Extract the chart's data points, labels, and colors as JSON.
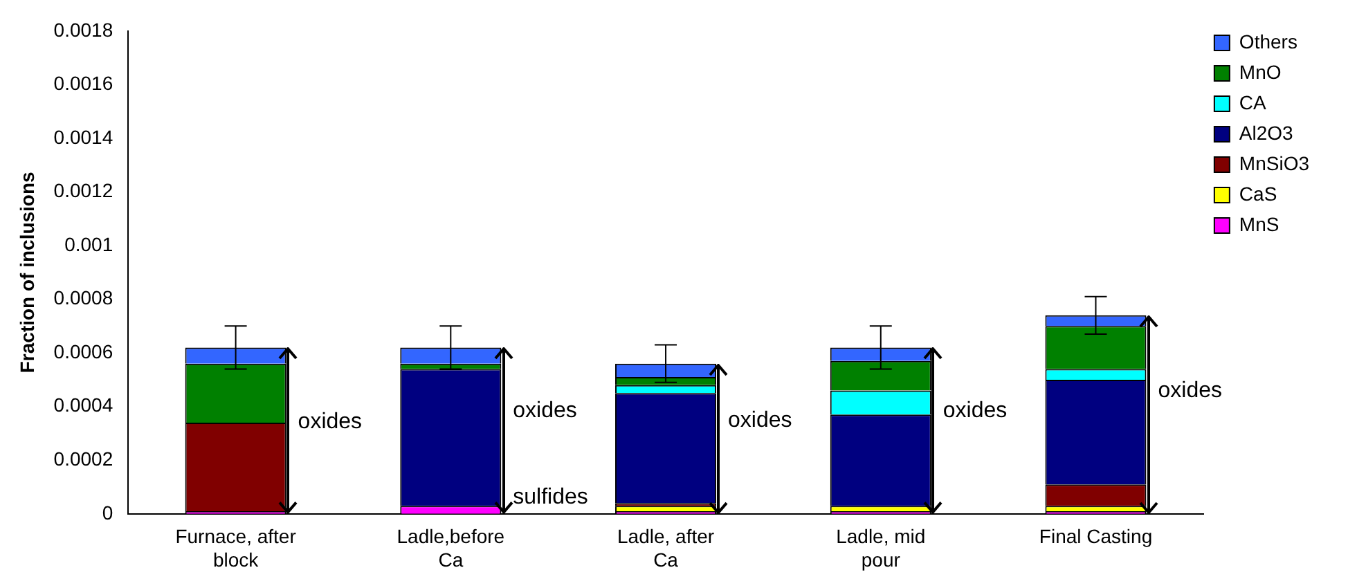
{
  "chart_data": {
    "type": "bar",
    "stacked": true,
    "ylabel": "Fraction of inclusions",
    "categories": [
      "Furnace, after block",
      "Ladle,before Ca",
      "Ladle, after Ca",
      "Ladle, mid pour",
      "Final Casting"
    ],
    "series": [
      {
        "name": "MnS",
        "color": "#ff00ff",
        "values": [
          1e-05,
          3e-05,
          1e-05,
          1e-05,
          1e-05
        ]
      },
      {
        "name": "CaS",
        "color": "#ffff00",
        "values": [
          0,
          0,
          2e-05,
          2e-05,
          2e-05
        ]
      },
      {
        "name": "MnSiO3",
        "color": "#800000",
        "values": [
          0.00033,
          0,
          1e-05,
          0,
          8e-05
        ]
      },
      {
        "name": "Al2O3",
        "color": "#000080",
        "values": [
          0,
          0.00051,
          0.00041,
          0.00034,
          0.00039
        ]
      },
      {
        "name": "CA",
        "color": "#00ffff",
        "values": [
          0,
          0,
          3e-05,
          9e-05,
          4e-05
        ]
      },
      {
        "name": "MnO",
        "color": "#008000",
        "values": [
          0.00022,
          2e-05,
          3e-05,
          0.00011,
          0.00016
        ]
      },
      {
        "name": "Others",
        "color": "#3366ff",
        "values": [
          6e-05,
          6e-05,
          5e-05,
          5e-05,
          4e-05
        ],
        "errors": [
          8e-05,
          8e-05,
          7e-05,
          8e-05,
          7e-05
        ]
      }
    ],
    "ylim": [
      0,
      0.0018
    ],
    "yticks": [
      0,
      0.0002,
      0.0004,
      0.0006,
      0.0008,
      0.001,
      0.0012,
      0.0014,
      0.0016,
      0.0018
    ],
    "grid": false,
    "legend": "top right",
    "annotations": [
      "oxides",
      "oxides",
      "oxides",
      "oxides",
      "oxides",
      {
        "text": "sulfides",
        "x": "Ladle,before Ca",
        "y": 3e-05
      }
    ]
  }
}
